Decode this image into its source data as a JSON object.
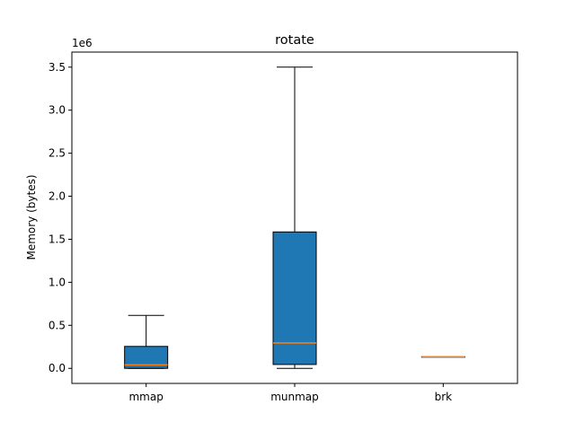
{
  "chart_data": {
    "type": "box",
    "title": "rotate",
    "xlabel": "",
    "ylabel": "Memory (bytes)",
    "y_offset_label": "1e6",
    "ylim": [
      -0.175,
      3.675
    ],
    "yticks": [
      0.0,
      0.5,
      1.0,
      1.5,
      2.0,
      2.5,
      3.0,
      3.5
    ],
    "ytick_labels": [
      "0.0",
      "0.5",
      "1.0",
      "1.5",
      "2.0",
      "2.5",
      "3.0",
      "3.5"
    ],
    "grid": false,
    "categories": [
      "mmap",
      "munmap",
      "brk"
    ],
    "boxes": [
      {
        "whisker_low": 0.0,
        "q1": 0.0,
        "median": 0.04,
        "q3": 0.255,
        "whisker_high": 0.615
      },
      {
        "whisker_low": 0.0,
        "q1": 0.045,
        "median": 0.295,
        "q3": 1.585,
        "whisker_high": 3.5
      },
      {
        "whisker_low": 0.135,
        "q1": 0.135,
        "median": 0.135,
        "q3": 0.135,
        "whisker_high": 0.135
      }
    ],
    "colors": {
      "box_fill": "#1f77b4",
      "median": "#ff7f0e",
      "edge": "#000000"
    }
  }
}
